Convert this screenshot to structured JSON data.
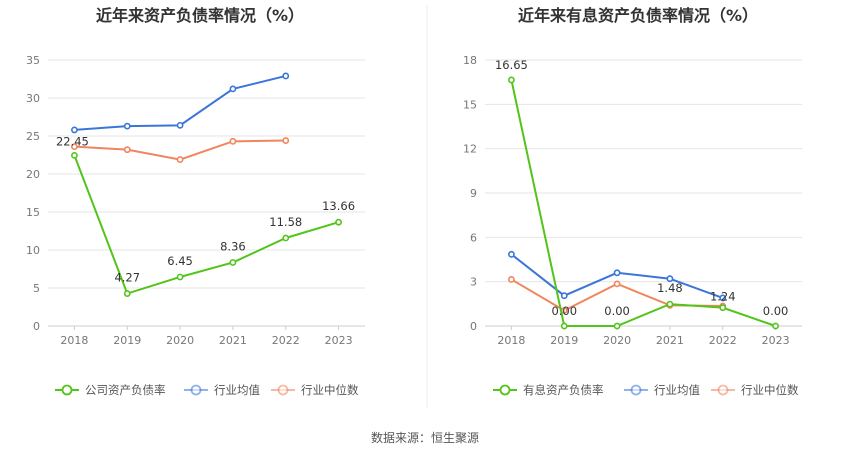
{
  "source_text": "数据来源：恒生聚源",
  "colors": {
    "company": "#52c41a",
    "avg": "#3a75d9",
    "median": "#f0855e",
    "grid": "#e6e6e6",
    "axis": "#cccccc"
  },
  "chart_data": [
    {
      "type": "line",
      "title": "近年来资产负债率情况（%）",
      "categories": [
        "2018",
        "2019",
        "2020",
        "2021",
        "2022",
        "2023"
      ],
      "yticks": [
        "0",
        "5",
        "10",
        "15",
        "20",
        "25",
        "30",
        "35"
      ],
      "ylim": [
        0,
        35
      ],
      "grid": true,
      "legend_position": "bottom",
      "series": [
        {
          "name": "公司资产负债率",
          "key": "company",
          "values": [
            22.45,
            4.27,
            6.45,
            8.36,
            11.58,
            13.66
          ],
          "labels": [
            "22.45",
            "4.27",
            "6.45",
            "8.36",
            "11.58",
            "13.66"
          ]
        },
        {
          "name": "行业均值",
          "key": "avg",
          "values": [
            25.8,
            26.3,
            26.4,
            31.2,
            32.9,
            null
          ]
        },
        {
          "name": "行业中位数",
          "key": "median",
          "values": [
            23.6,
            23.2,
            21.9,
            24.3,
            24.4,
            null
          ]
        }
      ]
    },
    {
      "type": "line",
      "title": "近年来有息资产负债率情况（%）",
      "categories": [
        "2018",
        "2019",
        "2020",
        "2021",
        "2022",
        "2023"
      ],
      "yticks": [
        "0",
        "3",
        "6",
        "9",
        "12",
        "15",
        "18"
      ],
      "ylim": [
        0,
        18
      ],
      "grid": true,
      "legend_position": "bottom",
      "series": [
        {
          "name": "有息资产负债率",
          "key": "company",
          "values": [
            16.65,
            0.0,
            0.0,
            1.48,
            1.24,
            0.0
          ],
          "labels": [
            "16.65",
            "0.00",
            "0.00",
            "1.48",
            "1.24",
            "0.00"
          ]
        },
        {
          "name": "行业均值",
          "key": "avg",
          "values": [
            4.85,
            2.05,
            3.6,
            3.2,
            1.9,
            null
          ]
        },
        {
          "name": "行业中位数",
          "key": "median",
          "values": [
            3.15,
            1.05,
            2.85,
            1.4,
            1.35,
            null
          ]
        }
      ]
    }
  ]
}
